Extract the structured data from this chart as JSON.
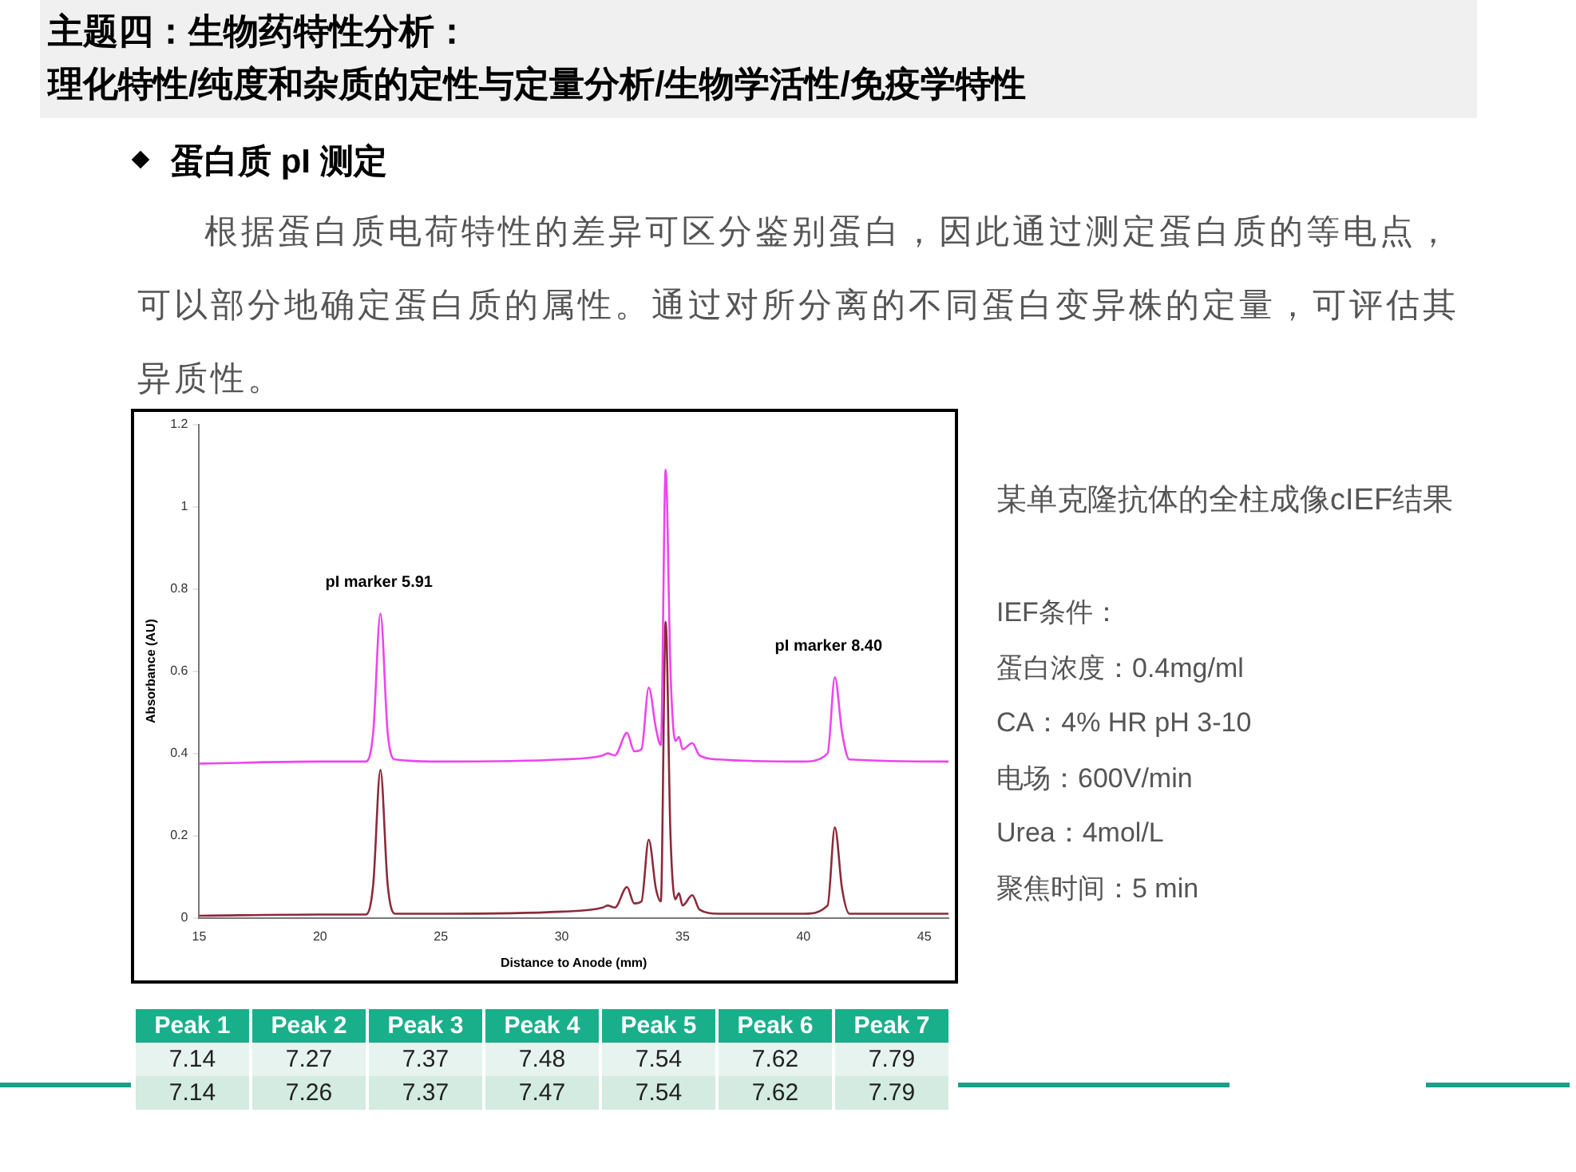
{
  "chart_data": {
    "type": "line",
    "title": "主题四：生物药特性分析：",
    "subtitle": "理化特性/纯度和杂质的定性与定量分析/生物学活性/免疫学特性",
    "xlabel": "Distance to Anode (mm)",
    "ylabel": "Absorbance (AU)",
    "xlim": [
      15,
      46
    ],
    "xticks": [
      15,
      20,
      25,
      30,
      35,
      40,
      45
    ],
    "ylim": [
      0,
      1.2
    ],
    "yticks": [
      0,
      0.2,
      0.4,
      0.6,
      0.8,
      1,
      1.2
    ],
    "grid": false,
    "legend": false,
    "marker": "none",
    "line_style": "solid",
    "series": [
      {
        "color": "#ee44ee",
        "x": [
          15,
          20,
          21.9,
          22.2,
          22.5,
          22.8,
          23.1,
          25,
          30,
          31.7,
          31.9,
          32.2,
          32.7,
          33.0,
          33.3,
          33.6,
          33.9,
          34.1,
          34.3,
          34.5,
          34.7,
          34.85,
          35.0,
          35.4,
          35.7,
          36.5,
          40,
          41.0,
          41.3,
          41.6,
          41.9,
          46
        ],
        "values": [
          0.375,
          0.38,
          0.38,
          0.45,
          0.74,
          0.45,
          0.385,
          0.38,
          0.385,
          0.395,
          0.4,
          0.395,
          0.45,
          0.405,
          0.41,
          0.56,
          0.46,
          0.42,
          1.09,
          0.6,
          0.43,
          0.44,
          0.41,
          0.425,
          0.395,
          0.385,
          0.38,
          0.4,
          0.585,
          0.45,
          0.385,
          0.38
        ]
      },
      {
        "color": "#8b2a3a",
        "x": [
          15,
          20,
          21.9,
          22.2,
          22.5,
          22.8,
          23.1,
          25,
          30,
          31.7,
          31.9,
          32.2,
          32.7,
          33.0,
          33.3,
          33.6,
          33.9,
          34.1,
          34.3,
          34.5,
          34.7,
          34.85,
          35.0,
          35.4,
          35.7,
          36.5,
          40,
          41.0,
          41.3,
          41.6,
          41.9,
          46
        ],
        "values": [
          0.005,
          0.008,
          0.008,
          0.08,
          0.36,
          0.08,
          0.01,
          0.01,
          0.015,
          0.025,
          0.03,
          0.025,
          0.075,
          0.035,
          0.04,
          0.19,
          0.07,
          0.04,
          0.72,
          0.2,
          0.045,
          0.06,
          0.03,
          0.055,
          0.02,
          0.01,
          0.01,
          0.03,
          0.22,
          0.07,
          0.01,
          0.01
        ]
      }
    ],
    "annotations": [
      "pI marker 5.91",
      "pI marker 8.40",
      "蛋白质 pI 测定",
      "根据蛋白质电荷特性的差异可区分鉴别蛋白，因此通过测定蛋白质的等电点，可以部分地确定蛋白质的属性。通过对所分离的不同蛋白变异株的定量，可评估其异质性。",
      "某单克隆抗体的全柱成像cIEF结果",
      "IEF条件：",
      "蛋白浓度：0.4mg/ml",
      "CA：4% HR pH 3-10",
      "电场：600V/min",
      "Urea：4mol/L",
      "聚焦时间：5 min",
      "Peak 1",
      "Peak 2",
      "Peak 3",
      "Peak 4",
      "Peak 5",
      "Peak 6",
      "Peak 7",
      "7.14",
      "7.27",
      "7.37",
      "7.48",
      "7.54",
      "7.62",
      "7.79",
      "7.14",
      "7.26",
      "7.37",
      "7.47",
      "7.54",
      "7.62",
      "7.79"
    ]
  }
}
